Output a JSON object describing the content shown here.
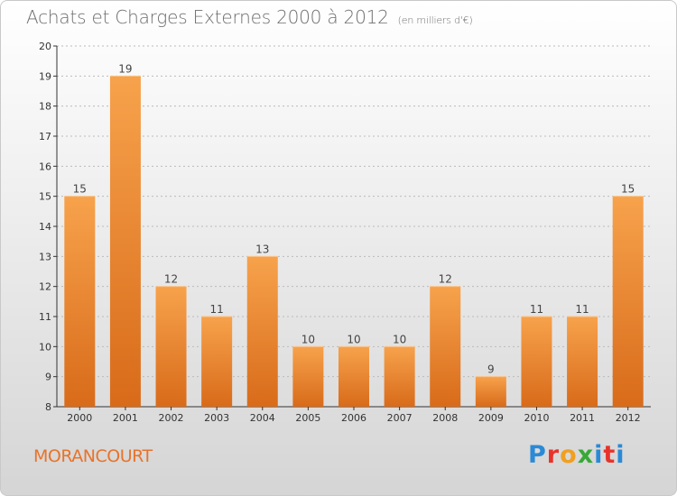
{
  "header": {
    "title": "Achats et Charges Externes 2000 à 2012",
    "subtitle": "(en milliers d'€)"
  },
  "footer": {
    "commune": "MORANCOURT",
    "logo": "Proxiti",
    "logo_colors": [
      "#2a8ad6",
      "#e8332a",
      "#f0a020",
      "#38a838",
      "#2a8ad6",
      "#e8332a",
      "#2a8ad6"
    ]
  },
  "colors": {
    "bar_top": "#f7a24c",
    "bar_bottom": "#d86b1a",
    "axis": "#333333",
    "grid": "#bbbbbb"
  },
  "chart_data": {
    "type": "bar",
    "categories": [
      "2000",
      "2001",
      "2002",
      "2003",
      "2004",
      "2005",
      "2006",
      "2007",
      "2008",
      "2009",
      "2010",
      "2011",
      "2012"
    ],
    "values": [
      15,
      19,
      12,
      11,
      13,
      10,
      10,
      10,
      12,
      9,
      11,
      11,
      15
    ],
    "title": "Achats et Charges Externes 2000 à 2012",
    "ylim": [
      8,
      20
    ],
    "yticks": [
      8,
      9,
      10,
      11,
      12,
      13,
      14,
      15,
      16,
      17,
      18,
      19,
      20
    ],
    "grid": true,
    "data_labels": true
  }
}
